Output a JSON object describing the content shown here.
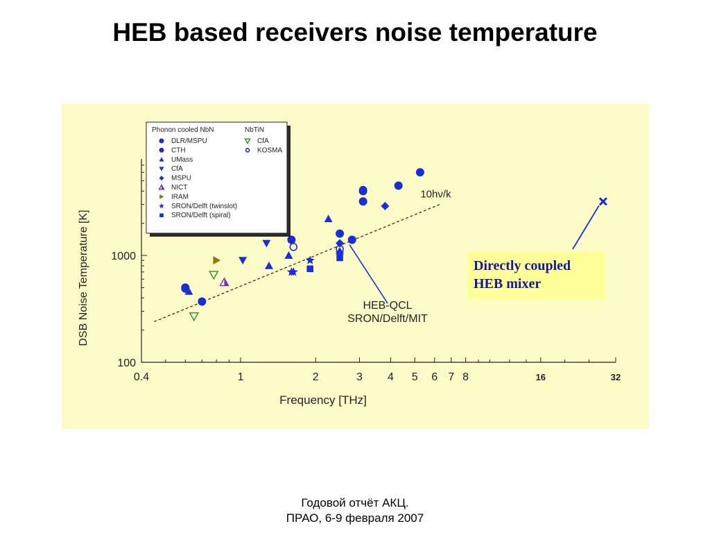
{
  "slide": {
    "title": "HEB based receivers noise temperature",
    "footer_line1": "Годовой отчёт АКЦ.",
    "footer_line2": "ПРАО, 6-9 февраля 2007"
  },
  "colors": {
    "panel_bg": "#fdfbc8",
    "marker_blue": "#1a2ed6",
    "cfa_green": "#2e8b3a",
    "nict_purple": "#7a2ea8",
    "iram_olive": "#8c7a12",
    "callout_bg": "#ffff99",
    "callout_text": "#16169a"
  },
  "chart_data": {
    "type": "scatter",
    "xscale": "log",
    "yscale": "log",
    "xlim": [
      0.4,
      32
    ],
    "ylim": [
      100,
      8000
    ],
    "xlabel": "Frequency [THz]",
    "ylabel": "DSB Noise Temperature [K]",
    "xticks": [
      "0.4",
      "1",
      "2",
      "3",
      "4",
      "5",
      "6",
      "7",
      "8",
      "16",
      "32"
    ],
    "yticks": [
      "100",
      "1000"
    ],
    "legend": {
      "header_left": "Phonon cooled NbN",
      "header_right": "NbTiN",
      "placement": "top-left",
      "entries_left": [
        {
          "label": "DLR/MSPU",
          "marker": "circle",
          "color": "#1a2ed6"
        },
        {
          "label": "CTH",
          "marker": "circle",
          "color": "#1a2ed6"
        },
        {
          "label": "UMass",
          "marker": "triangle-up",
          "color": "#1a2ed6"
        },
        {
          "label": "CfA",
          "marker": "triangle-down",
          "color": "#1a2ed6"
        },
        {
          "label": "MSPU",
          "marker": "diamond",
          "color": "#1a2ed6"
        },
        {
          "label": "NICT",
          "marker": "triangle-up-half",
          "color": "#7a2ea8"
        },
        {
          "label": "IRAM",
          "marker": "triangle-right",
          "color": "#8c7a12"
        },
        {
          "label": "SRON/Delft (twinslot)",
          "marker": "star",
          "color": "#1a2ed6"
        },
        {
          "label": "SRON/Delft (spiral)",
          "marker": "square",
          "color": "#1a2ed6"
        }
      ],
      "entries_right": [
        {
          "label": "CfA",
          "marker": "triangle-down-open",
          "color": "#2e8b3a"
        },
        {
          "label": "KOSMA",
          "marker": "circle-open",
          "color": "#1a2ed6"
        }
      ]
    },
    "series": [
      {
        "name": "DLR/MSPU",
        "marker": "circle",
        "color": "#1a2ed6",
        "points": [
          [
            0.6,
            500
          ],
          [
            0.7,
            370
          ],
          [
            1.6,
            1400
          ],
          [
            2.5,
            1600
          ],
          [
            3.1,
            3200
          ],
          [
            3.1,
            4000
          ],
          [
            4.3,
            4500
          ],
          [
            5.25,
            6000
          ]
        ]
      },
      {
        "name": "CTH",
        "marker": "circle",
        "color": "#1a2ed6",
        "points": [
          [
            0.6,
            490
          ],
          [
            2.8,
            1400
          ]
        ]
      },
      {
        "name": "UMass",
        "marker": "triangle-up",
        "color": "#1a2ed6",
        "points": [
          [
            0.62,
            460
          ],
          [
            1.3,
            800
          ],
          [
            1.56,
            1000
          ],
          [
            2.25,
            2200
          ],
          [
            2.5,
            1100
          ]
        ]
      },
      {
        "name": "CfA",
        "marker": "triangle-down",
        "color": "#1a2ed6",
        "points": [
          [
            1.02,
            900
          ],
          [
            1.27,
            1300
          ]
        ]
      },
      {
        "name": "MSPU",
        "marker": "diamond",
        "color": "#1a2ed6",
        "points": [
          [
            2.5,
            1300
          ],
          [
            3.8,
            2900
          ]
        ]
      },
      {
        "name": "NICT",
        "marker": "triangle-up-half",
        "color": "#7a2ea8",
        "points": [
          [
            0.86,
            560
          ]
        ]
      },
      {
        "name": "IRAM",
        "marker": "triangle-right",
        "color": "#8c7a12",
        "points": [
          [
            0.8,
            900
          ]
        ]
      },
      {
        "name": "SRON/Delft (twinslot)",
        "marker": "star",
        "color": "#1a2ed6",
        "points": [
          [
            1.6,
            700
          ],
          [
            1.63,
            700
          ],
          [
            1.9,
            900
          ],
          [
            2.5,
            1050
          ]
        ]
      },
      {
        "name": "SRON/Delft (spiral)",
        "marker": "square",
        "color": "#1a2ed6",
        "points": [
          [
            1.9,
            750
          ],
          [
            2.5,
            950
          ]
        ]
      },
      {
        "name": "CfA",
        "marker": "triangle-down-open",
        "color": "#2e8b3a",
        "points": [
          [
            0.65,
            270
          ],
          [
            0.78,
            660
          ]
        ]
      },
      {
        "name": "KOSMA",
        "marker": "circle-open",
        "color": "#1a2ed6",
        "points": [
          [
            1.63,
            1200
          ],
          [
            3.1,
            4100
          ],
          [
            2.5,
            1150
          ]
        ]
      }
    ],
    "extra_point": {
      "x": 28.5,
      "y": 3200,
      "marker": "x",
      "color": "#1a2ed6"
    },
    "reference_line": {
      "label": "10hν/k",
      "from": [
        0.45,
        240
      ],
      "to": [
        6.3,
        3000
      ]
    },
    "annotations": [
      {
        "id": "heb-qcl",
        "lines": [
          "HEB-QCL",
          "SRON/Delft/MIT"
        ],
        "points_to": [
          2.7,
          1380
        ]
      },
      {
        "id": "direct",
        "lines": [
          "Directly coupled",
          "HEB mixer"
        ],
        "points_to": [
          28.5,
          3200
        ]
      }
    ]
  }
}
